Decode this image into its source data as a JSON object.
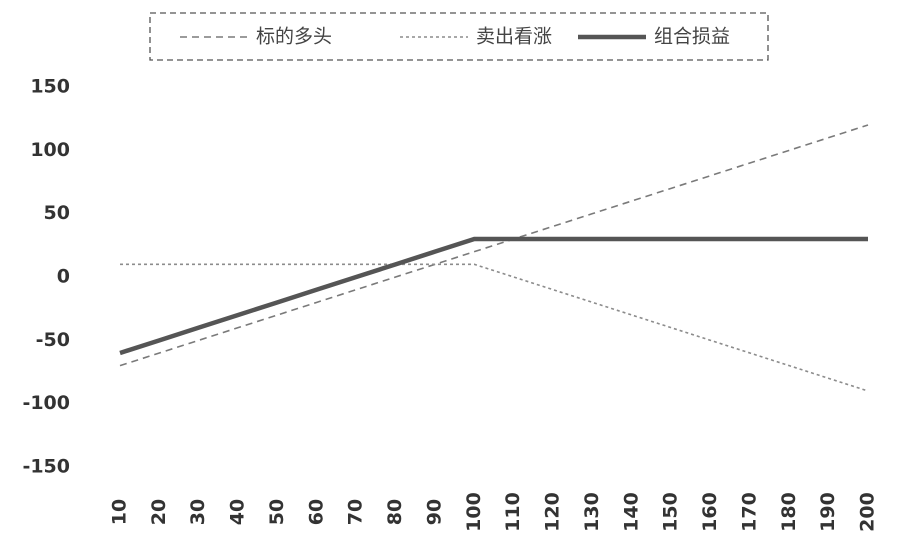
{
  "chart_data": {
    "type": "line",
    "x": [
      10,
      20,
      30,
      40,
      50,
      60,
      70,
      80,
      90,
      100,
      110,
      120,
      130,
      140,
      150,
      160,
      170,
      180,
      190,
      200
    ],
    "xlim": [
      10,
      200
    ],
    "series": [
      {
        "name": "标的多头",
        "color": "#7a7a7a",
        "style": "dashed",
        "values": [
          -70,
          -60,
          -50,
          -40,
          -30,
          -20,
          -10,
          0,
          10,
          20,
          30,
          40,
          50,
          60,
          70,
          80,
          90,
          100,
          110,
          120
        ]
      },
      {
        "name": "卖出看涨",
        "color": "#8c8c8c",
        "style": "dotted",
        "values": [
          10,
          10,
          10,
          10,
          10,
          10,
          10,
          10,
          10,
          10,
          0,
          -10,
          -20,
          -30,
          -40,
          -50,
          -60,
          -70,
          -80,
          -90
        ]
      },
      {
        "name": "组合损益",
        "color": "#555555",
        "style": "solid",
        "values": [
          -60,
          -50,
          -40,
          -30,
          -20,
          -10,
          0,
          10,
          20,
          30,
          30,
          30,
          30,
          30,
          30,
          30,
          30,
          30,
          30,
          30
        ]
      }
    ],
    "ylim": [
      -150,
      150
    ],
    "yticks": [
      -150,
      -100,
      -50,
      0,
      50,
      100,
      150
    ],
    "grid": false,
    "legend": "top"
  }
}
